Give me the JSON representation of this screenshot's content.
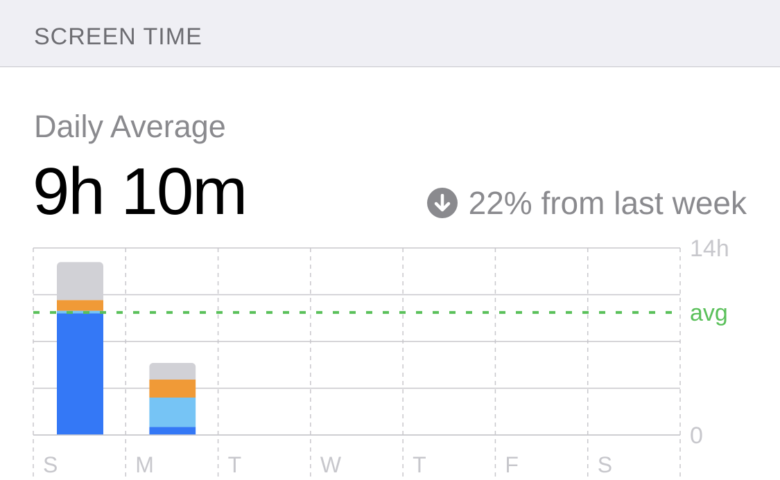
{
  "header": {
    "title": "SCREEN TIME"
  },
  "summary": {
    "label": "Daily Average",
    "value": "9h 10m",
    "change_icon": "arrow-down-circle-icon",
    "change_text": "22% from last week"
  },
  "chart_data": {
    "type": "bar",
    "stacked": true,
    "categories": [
      "S",
      "M",
      "T",
      "W",
      "T",
      "F",
      "S"
    ],
    "series": [
      {
        "color": "#3478f6",
        "values": [
          9.1,
          0.6,
          0,
          0,
          0,
          0,
          0
        ]
      },
      {
        "color": "#76c4f5",
        "values": [
          0.2,
          2.2,
          0,
          0,
          0,
          0,
          0
        ]
      },
      {
        "color": "#f09a37",
        "values": [
          0.8,
          1.35,
          0,
          0,
          0,
          0,
          0
        ]
      },
      {
        "color": "#d1d1d6",
        "values": [
          2.85,
          1.25,
          0,
          0,
          0,
          0,
          0
        ]
      }
    ],
    "ylim": [
      0,
      14
    ],
    "y_tick_labels": [
      "14h",
      "0"
    ],
    "avg": {
      "label": "avg",
      "value": 9.17,
      "color": "#5ac05a"
    },
    "grid": true
  }
}
